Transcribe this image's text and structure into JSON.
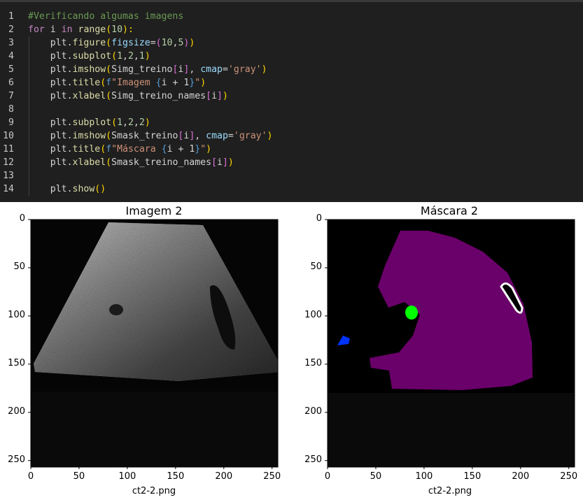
{
  "code_lines": [
    {
      "n": "1",
      "tokens": [
        {
          "t": "#Verificando algumas imagens",
          "c": "cmt"
        }
      ]
    },
    {
      "n": "2",
      "tokens": [
        {
          "t": "for",
          "c": "kw"
        },
        {
          "t": " i ",
          "c": "id"
        },
        {
          "t": "in",
          "c": "kw"
        },
        {
          "t": " ",
          "c": "id"
        },
        {
          "t": "range",
          "c": "fn"
        },
        {
          "t": "(",
          "c": "p1"
        },
        {
          "t": "10",
          "c": "num"
        },
        {
          "t": "):",
          "c": "p1"
        }
      ]
    },
    {
      "n": "3",
      "tokens": [
        {
          "t": "    plt.",
          "c": "id"
        },
        {
          "t": "figure",
          "c": "fn"
        },
        {
          "t": "(",
          "c": "p1"
        },
        {
          "t": "figsize",
          "c": "var"
        },
        {
          "t": "=",
          "c": "id"
        },
        {
          "t": "(",
          "c": "p2"
        },
        {
          "t": "10",
          "c": "num"
        },
        {
          "t": ",",
          "c": "id"
        },
        {
          "t": "5",
          "c": "num"
        },
        {
          "t": ")",
          "c": "p2"
        },
        {
          "t": ")",
          "c": "p1"
        }
      ]
    },
    {
      "n": "4",
      "tokens": [
        {
          "t": "    plt.",
          "c": "id"
        },
        {
          "t": "subplot",
          "c": "fn"
        },
        {
          "t": "(",
          "c": "p1"
        },
        {
          "t": "1",
          "c": "num"
        },
        {
          "t": ",",
          "c": "id"
        },
        {
          "t": "2",
          "c": "num"
        },
        {
          "t": ",",
          "c": "id"
        },
        {
          "t": "1",
          "c": "num"
        },
        {
          "t": ")",
          "c": "p1"
        }
      ]
    },
    {
      "n": "5",
      "tokens": [
        {
          "t": "    plt.",
          "c": "id"
        },
        {
          "t": "imshow",
          "c": "fn"
        },
        {
          "t": "(",
          "c": "p1"
        },
        {
          "t": "Simg_treino",
          "c": "id"
        },
        {
          "t": "[",
          "c": "p2"
        },
        {
          "t": "i",
          "c": "id"
        },
        {
          "t": "]",
          "c": "p2"
        },
        {
          "t": ", ",
          "c": "id"
        },
        {
          "t": "cmap",
          "c": "var"
        },
        {
          "t": "=",
          "c": "id"
        },
        {
          "t": "'gray'",
          "c": "str"
        },
        {
          "t": ")",
          "c": "p1"
        }
      ]
    },
    {
      "n": "6",
      "tokens": [
        {
          "t": "    plt.",
          "c": "id"
        },
        {
          "t": "title",
          "c": "fn"
        },
        {
          "t": "(",
          "c": "p1"
        },
        {
          "t": "f",
          "c": "fs"
        },
        {
          "t": "\"Imagem ",
          "c": "str"
        },
        {
          "t": "{",
          "c": "fs"
        },
        {
          "t": "i + 1",
          "c": "id"
        },
        {
          "t": "}",
          "c": "fs"
        },
        {
          "t": "\"",
          "c": "str"
        },
        {
          "t": ")",
          "c": "p1"
        }
      ]
    },
    {
      "n": "7",
      "tokens": [
        {
          "t": "    plt.",
          "c": "id"
        },
        {
          "t": "xlabel",
          "c": "fn"
        },
        {
          "t": "(",
          "c": "p1"
        },
        {
          "t": "Simg_treino_names",
          "c": "id"
        },
        {
          "t": "[",
          "c": "p2"
        },
        {
          "t": "i",
          "c": "id"
        },
        {
          "t": "]",
          "c": "p2"
        },
        {
          "t": ")",
          "c": "p1"
        }
      ]
    },
    {
      "n": "8",
      "tokens": []
    },
    {
      "n": "9",
      "tokens": [
        {
          "t": "    plt.",
          "c": "id"
        },
        {
          "t": "subplot",
          "c": "fn"
        },
        {
          "t": "(",
          "c": "p1"
        },
        {
          "t": "1",
          "c": "num"
        },
        {
          "t": ",",
          "c": "id"
        },
        {
          "t": "2",
          "c": "num"
        },
        {
          "t": ",",
          "c": "id"
        },
        {
          "t": "2",
          "c": "num"
        },
        {
          "t": ")",
          "c": "p1"
        }
      ]
    },
    {
      "n": "10",
      "tokens": [
        {
          "t": "    plt.",
          "c": "id"
        },
        {
          "t": "imshow",
          "c": "fn"
        },
        {
          "t": "(",
          "c": "p1"
        },
        {
          "t": "Smask_treino",
          "c": "id"
        },
        {
          "t": "[",
          "c": "p2"
        },
        {
          "t": "i",
          "c": "id"
        },
        {
          "t": "]",
          "c": "p2"
        },
        {
          "t": ", ",
          "c": "id"
        },
        {
          "t": "cmap",
          "c": "var"
        },
        {
          "t": "=",
          "c": "id"
        },
        {
          "t": "'gray'",
          "c": "str"
        },
        {
          "t": ")",
          "c": "p1"
        }
      ]
    },
    {
      "n": "11",
      "tokens": [
        {
          "t": "    plt.",
          "c": "id"
        },
        {
          "t": "title",
          "c": "fn"
        },
        {
          "t": "(",
          "c": "p1"
        },
        {
          "t": "f",
          "c": "fs"
        },
        {
          "t": "\"Máscara ",
          "c": "str"
        },
        {
          "t": "{",
          "c": "fs"
        },
        {
          "t": "i + 1",
          "c": "id"
        },
        {
          "t": "}",
          "c": "fs"
        },
        {
          "t": "\"",
          "c": "str"
        },
        {
          "t": ")",
          "c": "p1"
        }
      ]
    },
    {
      "n": "12",
      "tokens": [
        {
          "t": "    plt.",
          "c": "id"
        },
        {
          "t": "xlabel",
          "c": "fn"
        },
        {
          "t": "(",
          "c": "p1"
        },
        {
          "t": "Smask_treino_names",
          "c": "id"
        },
        {
          "t": "[",
          "c": "p2"
        },
        {
          "t": "i",
          "c": "id"
        },
        {
          "t": "]",
          "c": "p2"
        },
        {
          "t": ")",
          "c": "p1"
        }
      ]
    },
    {
      "n": "13",
      "tokens": []
    },
    {
      "n": "14",
      "tokens": [
        {
          "t": "    plt.",
          "c": "id"
        },
        {
          "t": "show",
          "c": "fn"
        },
        {
          "t": "()",
          "c": "p1"
        }
      ]
    }
  ],
  "output": {
    "left": {
      "title": "Imagem 2",
      "xlabel": "ct2-2.png",
      "xticks": [
        "0",
        "50",
        "100",
        "150",
        "200",
        "250"
      ],
      "yticks": [
        "0",
        "50",
        "100",
        "150",
        "200",
        "250"
      ]
    },
    "right": {
      "title": "Máscara 2",
      "xlabel": "ct2-2.png",
      "xticks": [
        "0",
        "50",
        "100",
        "150",
        "200",
        "250"
      ],
      "yticks": [
        "0",
        "50",
        "100",
        "150",
        "200",
        "250"
      ]
    }
  },
  "colors": {
    "liver": "#6a006a",
    "lesion_green": "#00ff00",
    "lesion_blue": "#0033ff",
    "ring": "#ffffff",
    "background": "#000000",
    "lower_band": "#0a0a0a"
  }
}
